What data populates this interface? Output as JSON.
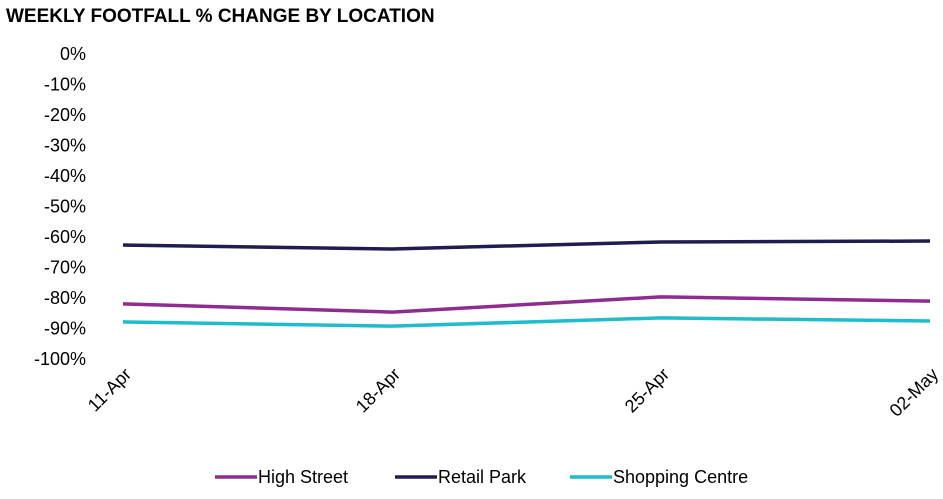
{
  "chart_data": {
    "type": "line",
    "title": "WEEKLY FOOTFALL % CHANGE BY LOCATION",
    "categories": [
      "11-Apr",
      "18-Apr",
      "25-Apr",
      "02-May"
    ],
    "series": [
      {
        "name": "High Street",
        "color": "#8e2c90",
        "values": [
          -81.6,
          -84.3,
          -79.3,
          -80.7
        ]
      },
      {
        "name": "Retail Park",
        "color": "#201c4f",
        "values": [
          -62.3,
          -63.6,
          -61.3,
          -61
        ]
      },
      {
        "name": "Shopping Centre",
        "color": "#1fbdcb",
        "values": [
          -87.5,
          -88.9,
          -86.2,
          -87.2
        ]
      }
    ],
    "ylim": [
      -100,
      0
    ],
    "yticks": [
      {
        "value": 0,
        "label": "0%"
      },
      {
        "value": -10,
        "label": "-10%"
      },
      {
        "value": -20,
        "label": "-20%"
      },
      {
        "value": -30,
        "label": "-30%"
      },
      {
        "value": -40,
        "label": "-40%"
      },
      {
        "value": -50,
        "label": "-50%"
      },
      {
        "value": -60,
        "label": "-60%"
      },
      {
        "value": -70,
        "label": "-70%"
      },
      {
        "value": -80,
        "label": "-80%"
      },
      {
        "value": -90,
        "label": "-90%"
      },
      {
        "value": -100,
        "label": "-100%"
      }
    ],
    "grid": false,
    "legend": "bottom"
  }
}
